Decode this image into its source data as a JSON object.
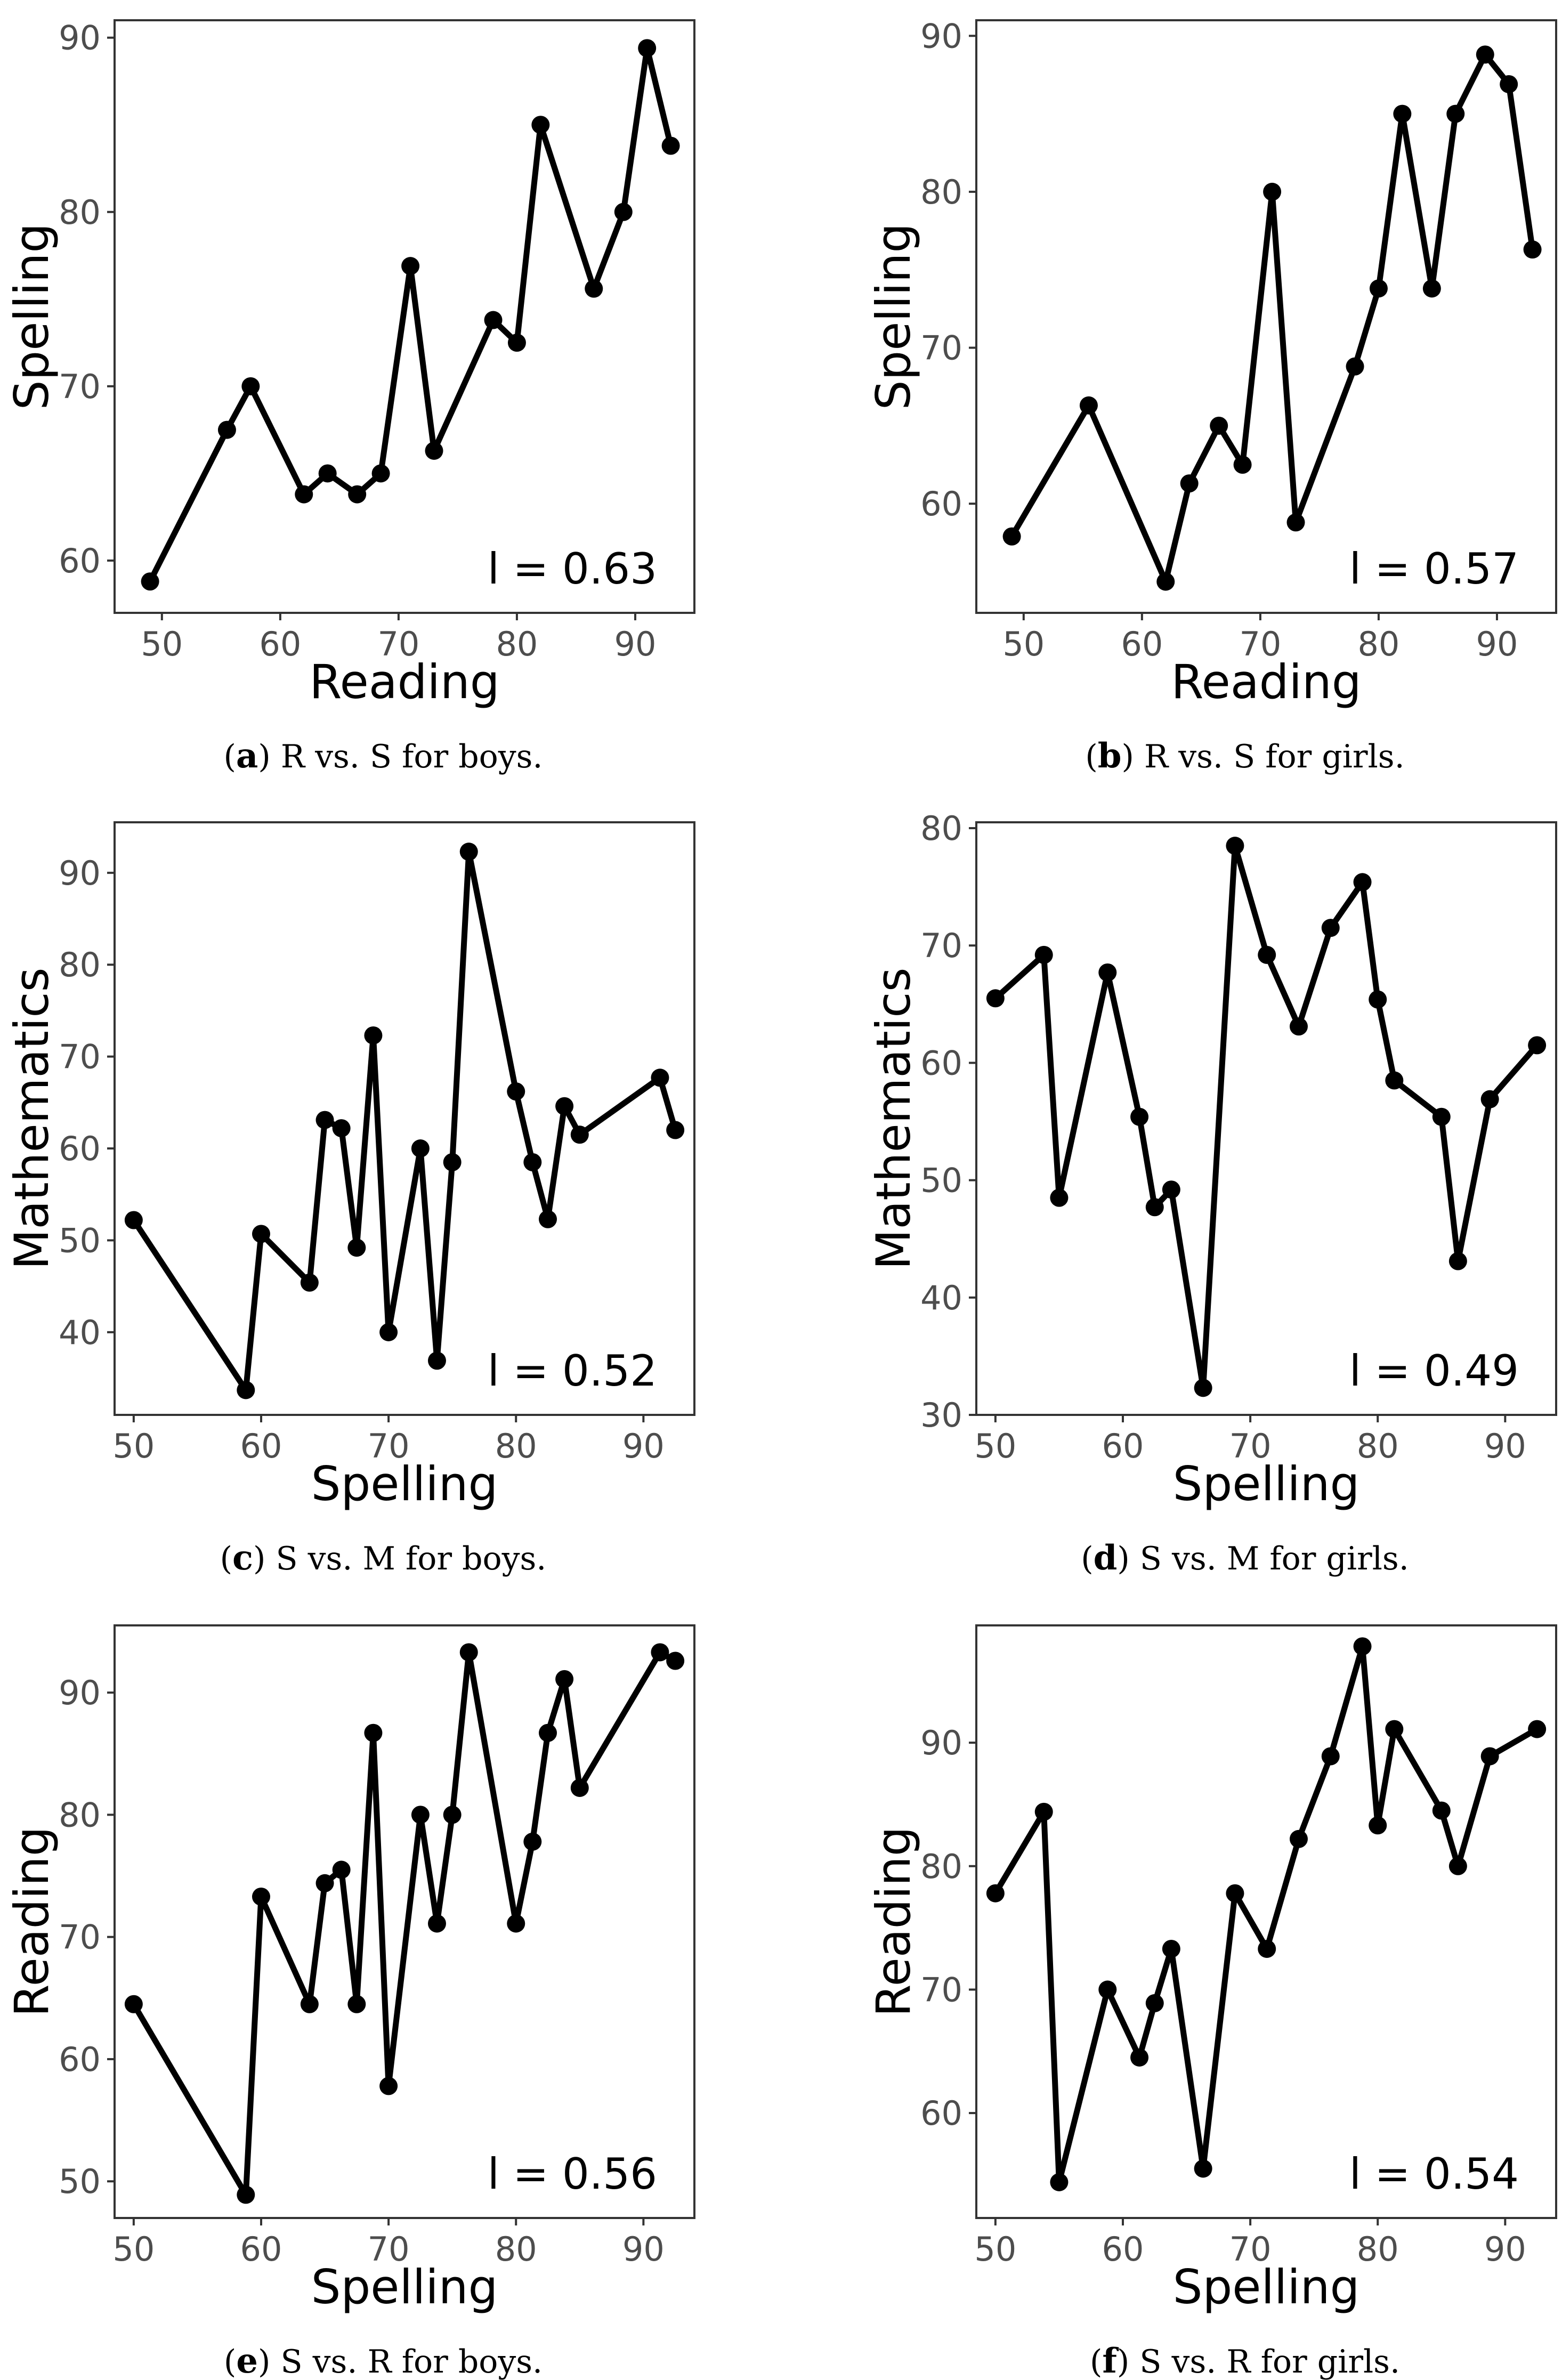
{
  "chart_data": [
    {
      "type": "line",
      "caption_label": "a",
      "caption_text": "R vs. S for boys.",
      "xlabel": "Reading",
      "ylabel": "Spelling",
      "annotation": "l = 0.63",
      "xlim": [
        46,
        95
      ],
      "ylim": [
        57,
        91
      ],
      "xticks": [
        50,
        60,
        70,
        80,
        90
      ],
      "yticks": [
        60,
        70,
        80,
        90
      ],
      "x": [
        49,
        55.5,
        57.5,
        62,
        64,
        66.5,
        68.5,
        71,
        73,
        78,
        80,
        82,
        86.5,
        89,
        91,
        93
      ],
      "y": [
        58.8,
        67.5,
        70,
        63.8,
        65,
        63.8,
        65,
        76.9,
        66.3,
        73.8,
        72.5,
        85,
        75.6,
        80,
        89.4,
        83.8
      ]
    },
    {
      "type": "line",
      "caption_label": "b",
      "caption_text": "R vs. S for girls.",
      "xlabel": "Reading",
      "ylabel": "Spelling",
      "annotation": "l = 0.57",
      "xlim": [
        46,
        95
      ],
      "ylim": [
        53,
        91
      ],
      "xticks": [
        50,
        60,
        70,
        80,
        90
      ],
      "yticks": [
        60,
        70,
        80,
        90
      ],
      "x": [
        49,
        55.5,
        62,
        64,
        66.5,
        68.5,
        71,
        73,
        78,
        80,
        82,
        84.5,
        86.5,
        89,
        91,
        93
      ],
      "y": [
        57.9,
        66.3,
        55,
        61.3,
        65,
        62.5,
        80,
        58.8,
        68.8,
        73.8,
        85,
        73.8,
        85,
        88.8,
        86.9,
        76.3
      ]
    },
    {
      "type": "line",
      "caption_label": "c",
      "caption_text": "S vs. M for boys.",
      "xlabel": "Spelling",
      "ylabel": "Mathematics",
      "annotation": "l = 0.52",
      "xlim": [
        48.5,
        94
      ],
      "ylim": [
        31,
        95.5
      ],
      "xticks": [
        50,
        60,
        70,
        80,
        90
      ],
      "yticks": [
        40,
        50,
        60,
        70,
        80,
        90
      ],
      "x": [
        50,
        58.8,
        60,
        63.8,
        65,
        66.3,
        67.5,
        68.8,
        70,
        72.5,
        73.8,
        75,
        76.3,
        80,
        81.3,
        82.5,
        83.8,
        85,
        91.3,
        92.5
      ],
      "y": [
        52.2,
        33.7,
        50.7,
        45.4,
        63.1,
        62.2,
        49.2,
        72.3,
        40,
        60,
        36.9,
        58.5,
        92.3,
        66.2,
        58.5,
        52.3,
        64.6,
        61.5,
        67.7,
        62
      ]
    },
    {
      "type": "line",
      "caption_label": "d",
      "caption_text": "S vs. M for girls.",
      "xlabel": "Spelling",
      "ylabel": "Mathematics",
      "annotation": "l = 0.49",
      "xlim": [
        48.5,
        94
      ],
      "ylim": [
        30,
        80.5
      ],
      "xticks": [
        50,
        60,
        70,
        80,
        90
      ],
      "yticks": [
        30,
        40,
        50,
        60,
        70,
        80
      ],
      "x": [
        50,
        53.8,
        55,
        58.8,
        61.3,
        62.5,
        63.8,
        66.3,
        68.8,
        71.3,
        73.8,
        76.3,
        78.8,
        80,
        81.3,
        85,
        86.3,
        88.8,
        92.5
      ],
      "y": [
        65.5,
        69.2,
        48.5,
        67.7,
        55.4,
        47.7,
        49.2,
        32.3,
        78.5,
        69.2,
        63.1,
        71.5,
        75.4,
        65.4,
        58.5,
        55.4,
        43.1,
        56.9,
        61.5
      ]
    },
    {
      "type": "line",
      "caption_label": "e",
      "caption_text": "S vs. R for boys.",
      "xlabel": "Spelling",
      "ylabel": "Reading",
      "annotation": "l = 0.56",
      "xlim": [
        48.5,
        94
      ],
      "ylim": [
        47,
        95.5
      ],
      "xticks": [
        50,
        60,
        70,
        80,
        90
      ],
      "yticks": [
        50,
        60,
        70,
        80,
        90
      ],
      "x": [
        50,
        58.8,
        60,
        63.8,
        65,
        66.3,
        67.5,
        68.8,
        70,
        72.5,
        73.8,
        75,
        76.3,
        80,
        81.3,
        82.5,
        83.8,
        85,
        91.3,
        92.5
      ],
      "y": [
        64.5,
        48.9,
        73.3,
        64.5,
        74.4,
        75.5,
        64.5,
        86.7,
        57.8,
        80,
        71.1,
        80,
        93.3,
        71.1,
        77.8,
        86.7,
        91.1,
        82.2,
        93.3,
        92.6
      ]
    },
    {
      "type": "line",
      "caption_label": "f",
      "caption_text": "S vs. R for girls.",
      "xlabel": "Spelling",
      "ylabel": "Reading",
      "annotation": "l = 0.54",
      "xlim": [
        48.5,
        94
      ],
      "ylim": [
        51.5,
        99.5
      ],
      "xticks": [
        50,
        60,
        70,
        80,
        90
      ],
      "yticks": [
        60,
        70,
        80,
        90
      ],
      "x": [
        50,
        53.8,
        55,
        58.8,
        61.3,
        62.5,
        63.8,
        66.3,
        68.8,
        71.3,
        73.8,
        76.3,
        78.8,
        80,
        81.3,
        85,
        86.3,
        88.8,
        92.5
      ],
      "y": [
        77.8,
        84.4,
        54.4,
        70,
        64.5,
        68.9,
        73.3,
        55.5,
        77.8,
        73.3,
        82.2,
        88.9,
        97.8,
        83.3,
        91.1,
        84.5,
        80,
        88.9,
        91.1
      ]
    }
  ]
}
